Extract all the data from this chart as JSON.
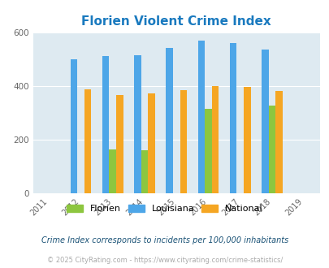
{
  "title": "Florien Violent Crime Index",
  "title_color": "#1a7abf",
  "years": [
    2011,
    2012,
    2013,
    2014,
    2015,
    2016,
    2017,
    2018,
    2019
  ],
  "bar_years": [
    2012,
    2013,
    2014,
    2015,
    2016,
    2017,
    2018
  ],
  "florien": [
    null,
    163,
    160,
    null,
    315,
    null,
    327
  ],
  "louisiana": [
    498,
    510,
    513,
    541,
    568,
    558,
    535
  ],
  "national": [
    387,
    364,
    372,
    383,
    400,
    395,
    382
  ],
  "florien_color": "#8dc63f",
  "louisiana_color": "#4da6e8",
  "national_color": "#f5a623",
  "bg_color": "#deeaf1",
  "ylim": [
    0,
    600
  ],
  "yticks": [
    0,
    200,
    400,
    600
  ],
  "bar_width": 0.22,
  "legend_labels": [
    "Florien",
    "Louisiana",
    "National"
  ],
  "footnote1": "Crime Index corresponds to incidents per 100,000 inhabitants",
  "footnote2": "© 2025 CityRating.com - https://www.cityrating.com/crime-statistics/",
  "footnote1_color": "#1a5276",
  "footnote2_color": "#aaaaaa"
}
